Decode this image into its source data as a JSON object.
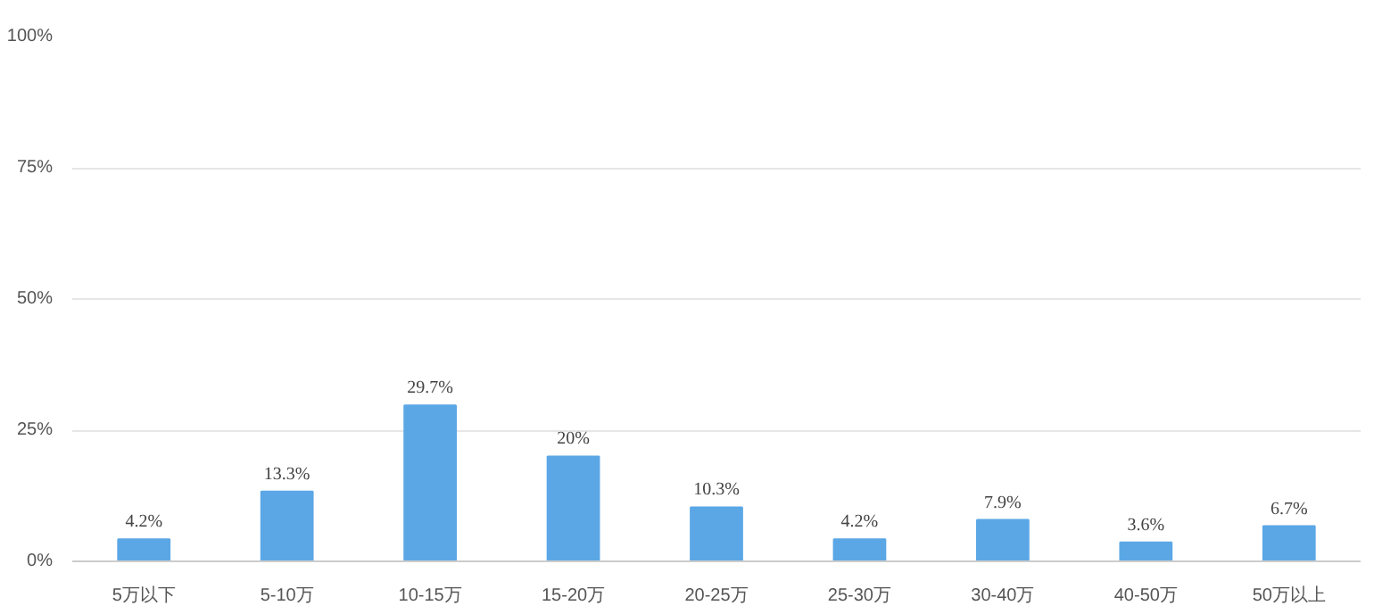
{
  "chart_data": {
    "type": "bar",
    "categories": [
      "5万以下",
      "5-10万",
      "10-15万",
      "15-20万",
      "20-25万",
      "25-30万",
      "30-40万",
      "40-50万",
      "50万以上"
    ],
    "values": [
      4.2,
      13.3,
      29.7,
      20,
      10.3,
      4.2,
      7.9,
      3.6,
      6.7
    ],
    "value_labels": [
      "4.2%",
      "13.3%",
      "29.7%",
      "20%",
      "10.3%",
      "4.2%",
      "7.9%",
      "3.6%",
      "6.7%"
    ],
    "color": "#5ba7e6",
    "ylim": [
      0,
      100
    ],
    "yticks": [
      {
        "value": 0,
        "label": "0%"
      },
      {
        "value": 25,
        "label": "25%"
      },
      {
        "value": 50,
        "label": "50%"
      },
      {
        "value": 75,
        "label": "75%"
      },
      {
        "value": 100,
        "label": "100%"
      }
    ],
    "grid": "y"
  }
}
